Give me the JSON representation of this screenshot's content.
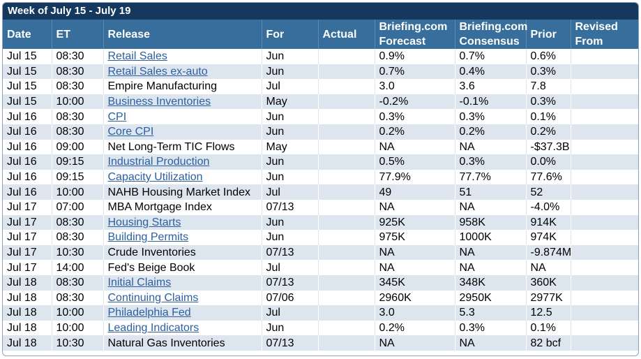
{
  "title": "Week of July 15 - July 19",
  "columns": {
    "date": "Date",
    "et": "ET",
    "release": "Release",
    "for": "For",
    "actual": "Actual",
    "forecast_line1": "Briefing.com",
    "forecast_line2": "Forecast",
    "consensus_line1": "Briefing.com",
    "consensus_line2": "Consensus",
    "prior": "Prior",
    "revised_line1": "Revised",
    "revised_line2": "From"
  },
  "rows": [
    {
      "date": "Jul 15",
      "et": "08:30",
      "release": "Retail Sales",
      "link": true,
      "for": "Jun",
      "actual": "",
      "forecast": "0.9%",
      "consensus": "0.7%",
      "prior": "0.6%",
      "revised": ""
    },
    {
      "date": "Jul 15",
      "et": "08:30",
      "release": "Retail Sales ex-auto",
      "link": true,
      "for": "Jun",
      "actual": "",
      "forecast": "0.7%",
      "consensus": "0.4%",
      "prior": "0.3%",
      "revised": ""
    },
    {
      "date": "Jul 15",
      "et": "08:30",
      "release": "Empire Manufacturing",
      "link": false,
      "for": "Jul",
      "actual": "",
      "forecast": "3.0",
      "consensus": "3.6",
      "prior": "7.8",
      "revised": ""
    },
    {
      "date": "Jul 15",
      "et": "10:00",
      "release": "Business Inventories",
      "link": true,
      "for": "May",
      "actual": "",
      "forecast": "-0.2%",
      "consensus": "-0.1%",
      "prior": "0.3%",
      "revised": ""
    },
    {
      "date": "Jul 16",
      "et": "08:30",
      "release": "CPI",
      "link": true,
      "for": "Jun",
      "actual": "",
      "forecast": "0.3%",
      "consensus": "0.3%",
      "prior": "0.1%",
      "revised": ""
    },
    {
      "date": "Jul 16",
      "et": "08:30",
      "release": "Core CPI",
      "link": true,
      "for": "Jun",
      "actual": "",
      "forecast": "0.2%",
      "consensus": "0.2%",
      "prior": "0.2%",
      "revised": ""
    },
    {
      "date": "Jul 16",
      "et": "09:00",
      "release": "Net Long-Term TIC Flows",
      "link": false,
      "for": "May",
      "actual": "",
      "forecast": "NA",
      "consensus": "NA",
      "prior": "-$37.3B",
      "revised": ""
    },
    {
      "date": "Jul 16",
      "et": "09:15",
      "release": "Industrial Production",
      "link": true,
      "for": "Jun",
      "actual": "",
      "forecast": "0.5%",
      "consensus": "0.3%",
      "prior": "0.0%",
      "revised": ""
    },
    {
      "date": "Jul 16",
      "et": "09:15",
      "release": "Capacity Utilization",
      "link": true,
      "for": "Jun",
      "actual": "",
      "forecast": "77.9%",
      "consensus": "77.7%",
      "prior": "77.6%",
      "revised": ""
    },
    {
      "date": "Jul 16",
      "et": "10:00",
      "release": "NAHB Housing Market Index",
      "link": false,
      "for": "Jul",
      "actual": "",
      "forecast": "49",
      "consensus": "51",
      "prior": "52",
      "revised": ""
    },
    {
      "date": "Jul 17",
      "et": "07:00",
      "release": "MBA Mortgage Index",
      "link": false,
      "for": "07/13",
      "actual": "",
      "forecast": "NA",
      "consensus": "NA",
      "prior": "-4.0%",
      "revised": ""
    },
    {
      "date": "Jul 17",
      "et": "08:30",
      "release": "Housing Starts",
      "link": true,
      "for": "Jun",
      "actual": "",
      "forecast": "925K",
      "consensus": "958K",
      "prior": "914K",
      "revised": ""
    },
    {
      "date": "Jul 17",
      "et": "08:30",
      "release": "Building Permits",
      "link": true,
      "for": "Jun",
      "actual": "",
      "forecast": "975K",
      "consensus": "1000K",
      "prior": "974K",
      "revised": ""
    },
    {
      "date": "Jul 17",
      "et": "10:30",
      "release": "Crude Inventories",
      "link": false,
      "for": "07/13",
      "actual": "",
      "forecast": "NA",
      "consensus": "NA",
      "prior": "-9.874M",
      "revised": ""
    },
    {
      "date": "Jul 17",
      "et": "14:00",
      "release": "Fed's Beige Book",
      "link": false,
      "for": "Jul",
      "actual": "",
      "forecast": "NA",
      "consensus": "NA",
      "prior": "NA",
      "revised": ""
    },
    {
      "date": "Jul 18",
      "et": "08:30",
      "release": "Initial Claims",
      "link": true,
      "for": "07/13",
      "actual": "",
      "forecast": "345K",
      "consensus": "348K",
      "prior": "360K",
      "revised": ""
    },
    {
      "date": "Jul 18",
      "et": "08:30",
      "release": "Continuing Claims",
      "link": true,
      "for": "07/06",
      "actual": "",
      "forecast": "2960K",
      "consensus": "2950K",
      "prior": "2977K",
      "revised": ""
    },
    {
      "date": "Jul 18",
      "et": "10:00",
      "release": "Philadelphia Fed",
      "link": true,
      "for": "Jul",
      "actual": "",
      "forecast": "3.0",
      "consensus": "5.3",
      "prior": "12.5",
      "revised": ""
    },
    {
      "date": "Jul 18",
      "et": "10:00",
      "release": "Leading Indicators",
      "link": true,
      "for": "Jun",
      "actual": "",
      "forecast": "0.2%",
      "consensus": "0.3%",
      "prior": "0.1%",
      "revised": ""
    },
    {
      "date": "Jul 18",
      "et": "10:30",
      "release": "Natural Gas Inventories",
      "link": false,
      "for": "07/13",
      "actual": "",
      "forecast": "NA",
      "consensus": "NA",
      "prior": "82 bcf",
      "revised": ""
    }
  ],
  "colors": {
    "title_bg": "#14385e",
    "header_bg": "#376e9b",
    "row_alt_bg": "#dde6ee",
    "link": "#2b5fa0"
  }
}
